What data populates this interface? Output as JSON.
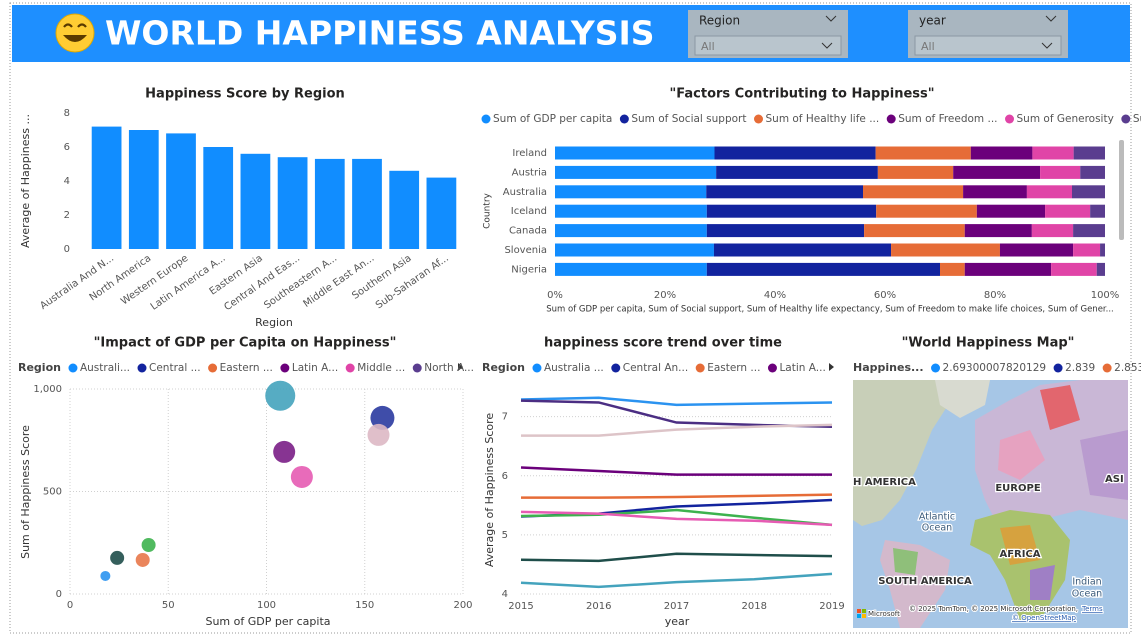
{
  "header": {
    "title": "WORLD HAPPINESS ANALYSIS",
    "slicers": [
      {
        "label": "Region",
        "value": "All"
      },
      {
        "label": "year",
        "value": "All"
      }
    ]
  },
  "chart_data": [
    {
      "type": "bar",
      "title": "Happiness Score by Region",
      "x_label": "Region",
      "y_label": "Average of Happiness ...",
      "categories": [
        "Australia And N...",
        "North America",
        "Western Europe",
        "Latin America A...",
        "Eastern Asia",
        "Central And Eas...",
        "Southeastern A...",
        "Middle East An...",
        "Southern Asia",
        "Sub-Saharan Af..."
      ],
      "values": [
        7.2,
        7.0,
        6.8,
        6.0,
        5.6,
        5.4,
        5.3,
        5.3,
        4.6,
        4.2
      ],
      "color": "#118DFF",
      "ylim": [
        0,
        8
      ],
      "yticks": [
        0,
        2,
        4,
        6,
        8
      ]
    },
    {
      "type": "stacked_bar_100",
      "title": "\"Factors Contributing to Happiness\"",
      "y_label": "Country",
      "x_label": "Sum of GDP per capita, Sum of Social support, Sum of Healthy life expectancy, Sum of Freedom to make life choices, Sum of Gener...",
      "categories": [
        "Ireland",
        "Austria",
        "Australia",
        "Iceland",
        "Canada",
        "Slovenia",
        "Nigeria"
      ],
      "series": [
        {
          "name": "Sum of GDP per capita",
          "color": "#118DFF",
          "values": [
            29.0,
            29.3,
            27.5,
            27.6,
            27.6,
            28.9,
            27.6
          ]
        },
        {
          "name": "Sum of Social support",
          "color": "#12239E",
          "values": [
            29.3,
            29.4,
            28.5,
            30.8,
            28.6,
            32.2,
            42.4
          ]
        },
        {
          "name": "Sum of Healthy life ...",
          "color": "#E66C37",
          "values": [
            17.3,
            13.7,
            18.2,
            18.3,
            18.3,
            19.8,
            4.5
          ]
        },
        {
          "name": "Sum of Freedom ...",
          "color": "#6B007B",
          "values": [
            11.2,
            15.8,
            11.6,
            12.4,
            12.2,
            13.3,
            15.7
          ]
        },
        {
          "name": "Sum of Generosity",
          "color": "#E044A7",
          "values": [
            7.5,
            7.3,
            8.2,
            8.2,
            7.5,
            4.9,
            8.3
          ]
        },
        {
          "name": "Sum of Perce...",
          "color": "#5A3D8F",
          "values": [
            5.7,
            4.5,
            6.0,
            2.7,
            5.8,
            0.9,
            1.5
          ]
        }
      ],
      "xlim": [
        0,
        100
      ],
      "xticks": [
        {
          "value": 0,
          "label": "0%"
        },
        {
          "value": 20,
          "label": "20%"
        },
        {
          "value": 40,
          "label": "40%"
        },
        {
          "value": 60,
          "label": "60%"
        },
        {
          "value": 80,
          "label": "80%"
        },
        {
          "value": 100,
          "label": "100%"
        }
      ]
    },
    {
      "type": "bubble",
      "title": "\"Impact of GDP per Capita on Happiness\"",
      "x_label": "Sum of GDP per capita",
      "y_label": "Sum of Happiness Score",
      "legend_title": "Region",
      "legend": [
        {
          "name": "Australi...",
          "color": "#118DFF"
        },
        {
          "name": "Central ...",
          "color": "#12239E"
        },
        {
          "name": "Eastern ...",
          "color": "#E66C37"
        },
        {
          "name": "Latin A...",
          "color": "#6B007B"
        },
        {
          "name": "Middle ...",
          "color": "#E044A7"
        },
        {
          "name": "North A...",
          "color": "#5A3D8F"
        }
      ],
      "points": {
        "x": [
          107,
          159,
          157,
          109,
          118,
          40,
          24,
          37,
          18
        ],
        "y": [
          967,
          859,
          776,
          693,
          571,
          239,
          176,
          166,
          88
        ],
        "sizes": [
          225,
          144,
          121,
          121,
          121,
          49,
          49,
          49,
          25
        ],
        "colors": [
          "#44A3BD",
          "#2A3AA0",
          "#DDB8C4",
          "#7A1E86",
          "#E65BB3",
          "#3DB24E",
          "#1F4E4A",
          "#E8784A",
          "#2B93F0"
        ]
      },
      "xlim": [
        0,
        200
      ],
      "xticks": [
        0,
        50,
        100,
        150,
        200
      ],
      "ylim": [
        0,
        1000
      ],
      "yticks": [
        0,
        500,
        {
          "value": 1000,
          "label": "1,000"
        }
      ],
      "grid": true
    },
    {
      "type": "line",
      "title": "happiness score trend over time",
      "x_label": "year",
      "y_label": "Average of Happiness Score",
      "legend_title": "Region",
      "legend": [
        {
          "name": "Australia ...",
          "color": "#118DFF"
        },
        {
          "name": "Central An...",
          "color": "#12239E"
        },
        {
          "name": "Eastern ...",
          "color": "#E66C37"
        },
        {
          "name": "Latin A...",
          "color": "#6B007B"
        }
      ],
      "x": [
        2015,
        2016,
        2017,
        2018,
        2019
      ],
      "series": [
        {
          "color": "#2B93F0",
          "values": [
            7.29,
            7.32,
            7.2,
            7.22,
            7.24
          ]
        },
        {
          "color": "#4B2E83",
          "values": [
            7.27,
            7.24,
            6.9,
            6.86,
            6.83
          ]
        },
        {
          "color": "#DDC4C8",
          "values": [
            6.68,
            6.68,
            6.78,
            6.83,
            6.86
          ]
        },
        {
          "color": "#6B007B",
          "values": [
            6.14,
            6.08,
            6.02,
            6.02,
            6.02
          ]
        },
        {
          "color": "#E66C37",
          "values": [
            5.63,
            5.63,
            5.64,
            5.66,
            5.68
          ]
        },
        {
          "color": "#12239E",
          "values": [
            5.31,
            5.36,
            5.48,
            5.53,
            5.59
          ]
        },
        {
          "color": "#3DB24E",
          "values": [
            5.32,
            5.34,
            5.42,
            5.29,
            5.17
          ]
        },
        {
          "color": "#E65BB3",
          "values": [
            5.39,
            5.36,
            5.27,
            5.24,
            5.17
          ]
        },
        {
          "color": "#1F4E4A",
          "values": [
            4.58,
            4.56,
            4.68,
            4.66,
            4.64
          ]
        },
        {
          "color": "#44A3BD",
          "values": [
            4.19,
            4.12,
            4.2,
            4.25,
            4.34
          ]
        }
      ],
      "xlim": [
        2015,
        2019
      ],
      "xticks": [
        2015,
        2016,
        2017,
        2018,
        2019
      ],
      "ylim": [
        4,
        7.4
      ],
      "yticks": [
        4,
        5,
        6,
        7
      ],
      "grid": true
    },
    {
      "type": "map",
      "title": "\"World Happiness Map\"",
      "legend_title": "Happines...",
      "legend": [
        {
          "name": "2.69300007820129",
          "color": "#118DFF"
        },
        {
          "name": "2.839",
          "color": "#12239E"
        },
        {
          "name": "2.853",
          "color": "#E66C37"
        }
      ],
      "labels": [
        "H AMERICA",
        "EUROPE",
        "ASI",
        "Atlantic",
        "Ocean",
        "AFRICA",
        "SOUTH AMERICA",
        "Indian",
        "Ocean"
      ],
      "attribution": [
        "Microsoft",
        "© 2025 TomTom, © 2025 Microsoft Corporation,",
        "Terms",
        "© OpenStreetMap"
      ]
    }
  ]
}
